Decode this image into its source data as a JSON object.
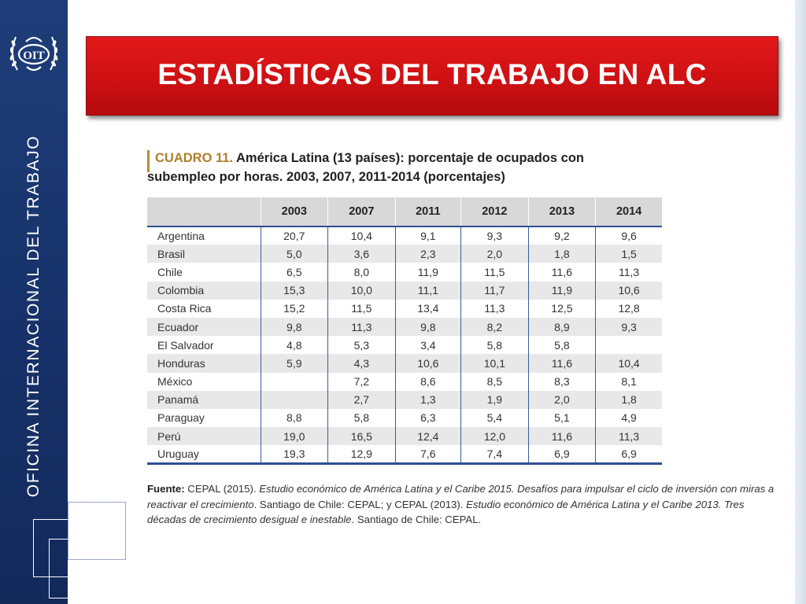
{
  "sidebar": {
    "logo_text": "OIT",
    "vertical_text": "OFICINA INTERNACIONAL DEL TRABAJO"
  },
  "title": "ESTADÍSTICAS DEL TRABAJO EN ALC",
  "table_caption": {
    "label": "CUADRO 11.",
    "text_line1": "América Latina (13 países): porcentaje de ocupados con",
    "text_line2": "subempleo por horas. 2003, 2007, 2011-2014 (porcentajes)"
  },
  "table": {
    "headers": [
      "",
      "2003",
      "2007",
      "2011",
      "2012",
      "2013",
      "2014"
    ],
    "rows": [
      [
        "Argentina",
        "20,7",
        "10,4",
        "9,1",
        "9,3",
        "9,2",
        "9,6"
      ],
      [
        "Brasil",
        "5,0",
        "3,6",
        "2,3",
        "2,0",
        "1,8",
        "1,5"
      ],
      [
        "Chile",
        "6,5",
        "8,0",
        "11,9",
        "11,5",
        "11,6",
        "11,3"
      ],
      [
        "Colombia",
        "15,3",
        "10,0",
        "11,1",
        "11,7",
        "11,9",
        "10,6"
      ],
      [
        "Costa Rica",
        "15,2",
        "11,5",
        "13,4",
        "11,3",
        "12,5",
        "12,8"
      ],
      [
        "Ecuador",
        "9,8",
        "11,3",
        "9,8",
        "8,2",
        "8,9",
        "9,3"
      ],
      [
        "El Salvador",
        "4,8",
        "5,3",
        "3,4",
        "5,8",
        "5,8",
        ""
      ],
      [
        "Honduras",
        "5,9",
        "4,3",
        "10,6",
        "10,1",
        "11,6",
        "10,4"
      ],
      [
        "México",
        "",
        "7,2",
        "8,6",
        "8,5",
        "8,3",
        "8,1"
      ],
      [
        "Panamá",
        "",
        "2,7",
        "1,3",
        "1,9",
        "2,0",
        "1,8"
      ],
      [
        "Paraguay",
        "8,8",
        "5,8",
        "6,3",
        "5,4",
        "5,1",
        "4,9"
      ],
      [
        "Perú",
        "19,0",
        "16,5",
        "12,4",
        "12,0",
        "11,6",
        "11,3"
      ],
      [
        "Uruguay",
        "19,3",
        "12,9",
        "7,6",
        "7,4",
        "6,9",
        "6,9"
      ]
    ]
  },
  "source": {
    "label": "Fuente:",
    "part1": " CEPAL (2015). ",
    "title1": "Estudio económico de América Latina y el Caribe 2015. Desafíos para impulsar el ciclo de inversión con miras a reactivar el crecimiento",
    "part2": ". Santiago de Chile: CEPAL; y CEPAL (2013). ",
    "title2": "Estudio económico de América Latina y el Caribe 2013. Tres décadas de crecimiento desigual e inestable",
    "part3": ". Santiago de Chile: CEPAL."
  },
  "colors": {
    "sidebar": "#1e3d78",
    "banner_red": "#cc1013",
    "table_rule": "#2e4f92",
    "caption_label": "#b07e2a"
  }
}
